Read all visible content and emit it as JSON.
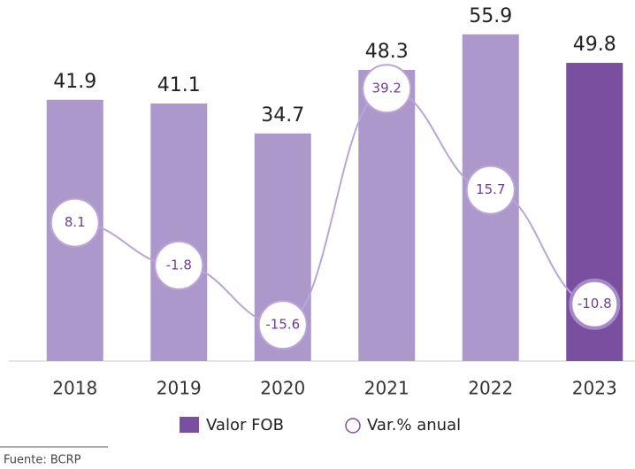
{
  "chart_data": {
    "type": "bar",
    "categories": [
      "2018",
      "2019",
      "2020",
      "2021",
      "2022",
      "2023"
    ],
    "series": [
      {
        "name": "Valor FOB",
        "type": "bar",
        "color": "#7b4fa0",
        "colors": [
          "#ad98cb",
          "#ad98cb",
          "#ad98cb",
          "#ad98cb",
          "#ad98cb",
          "#7b4fa0"
        ],
        "values": [
          41.9,
          41.1,
          34.7,
          48.3,
          55.9,
          49.8
        ]
      },
      {
        "name": "Var.% anual",
        "type": "line",
        "axis": "y2",
        "color": "#b9a6d6",
        "values": [
          8.1,
          -1.8,
          -15.6,
          39.2,
          15.7,
          -10.8
        ]
      }
    ],
    "ylim": [
      -14,
      57
    ],
    "y2lim": [
      -24,
      53
    ],
    "source": "Fuente: BCRP"
  }
}
